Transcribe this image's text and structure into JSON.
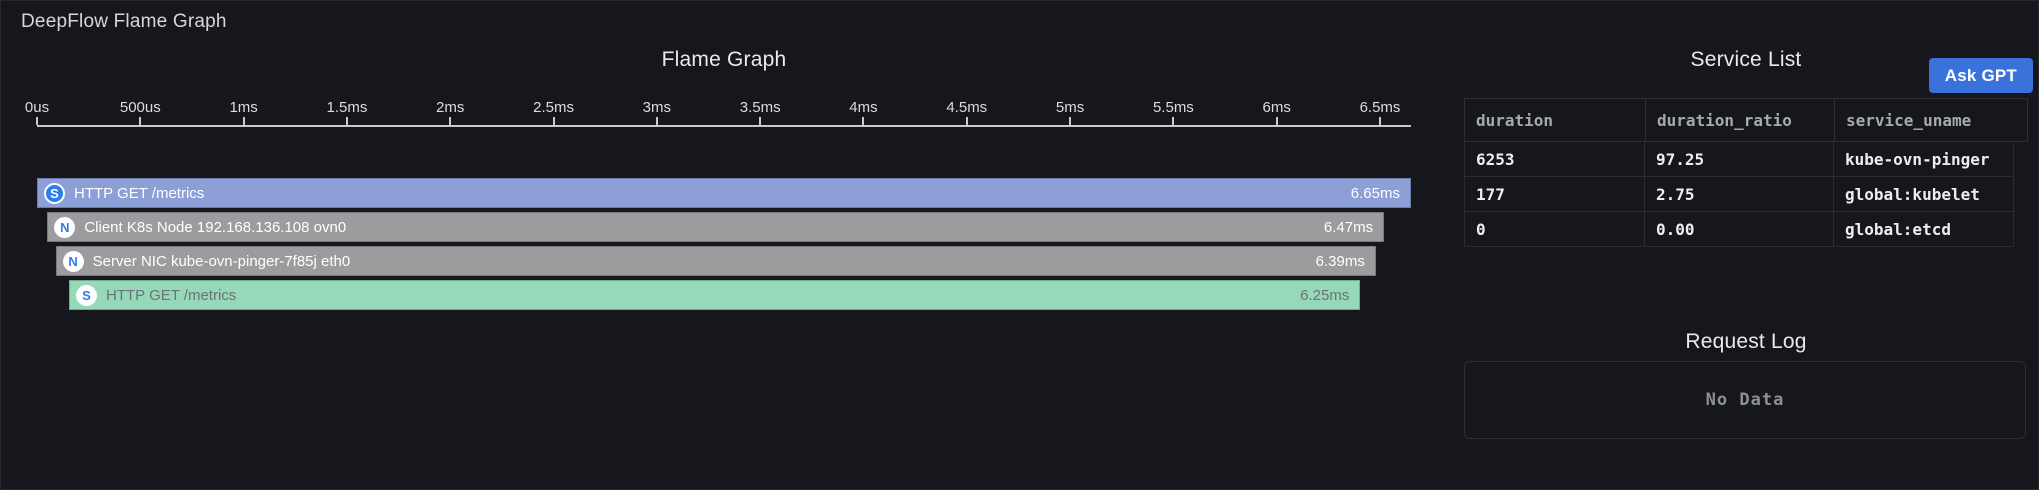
{
  "panel": {
    "title": "DeepFlow Flame Graph"
  },
  "flame_graph": {
    "title": "Flame Graph",
    "axis": {
      "ticks": [
        "0us",
        "500us",
        "1ms",
        "1.5ms",
        "2ms",
        "2.5ms",
        "3ms",
        "3.5ms",
        "4ms",
        "4.5ms",
        "5ms",
        "5.5ms",
        "6ms",
        "6.5ms"
      ],
      "tick_interval_ms": 0.5,
      "max_ms": 6.65
    },
    "bars": [
      {
        "icon": "S",
        "icon_style": "solid",
        "label": "HTTP GET /metrics",
        "duration": "6.65ms",
        "start_ms": 0,
        "duration_ms": 6.65,
        "color": "#8c9fd6",
        "text_color": "#ffffff"
      },
      {
        "icon": "N",
        "icon_style": "inverse",
        "label": "Client K8s Node 192.168.136.108 ovn0",
        "duration": "6.47ms",
        "start_ms": 0.05,
        "duration_ms": 6.47,
        "color": "#9c9c9e",
        "text_color": "#ffffff"
      },
      {
        "icon": "N",
        "icon_style": "inverse",
        "label": "Server NIC kube-ovn-pinger-7f85j eth0",
        "duration": "6.39ms",
        "start_ms": 0.09,
        "duration_ms": 6.39,
        "color": "#9c9c9e",
        "text_color": "#ffffff"
      },
      {
        "icon": "S",
        "icon_style": "inverse",
        "label": "HTTP GET /metrics",
        "duration": "6.25ms",
        "start_ms": 0.155,
        "duration_ms": 6.25,
        "color": "#95d9b8",
        "text_color": "#6d7278"
      }
    ]
  },
  "service_list": {
    "title": "Service List",
    "ask_gpt_label": "Ask GPT",
    "columns": [
      "duration",
      "duration_ratio",
      "service_uname"
    ],
    "rows": [
      [
        "6253",
        "97.25",
        "kube-ovn-pinger"
      ],
      [
        "177",
        "2.75",
        "global:kubelet"
      ],
      [
        "0",
        "0.00",
        "global:etcd"
      ]
    ]
  },
  "request_log": {
    "title": "Request Log",
    "empty_text": "No Data"
  },
  "colors": {
    "accent_blue": "#3a72dc",
    "icon_blue": "#2e7de9",
    "bar_blue": "#8c9fd6",
    "bar_gray": "#9c9c9e",
    "bar_green": "#95d9b8",
    "axis_line": "#c9cacd"
  },
  "chart_data": {
    "type": "flame",
    "title": "Flame Graph",
    "x_unit": "ms",
    "x_ticks_ms": [
      0,
      0.5,
      1,
      1.5,
      2,
      2.5,
      3,
      3.5,
      4,
      4.5,
      5,
      5.5,
      6,
      6.5
    ],
    "frames": [
      {
        "depth": 0,
        "kind": "S",
        "name": "HTTP GET /metrics",
        "duration_ms": 6.65
      },
      {
        "depth": 1,
        "kind": "N",
        "name": "Client K8s Node 192.168.136.108 ovn0",
        "duration_ms": 6.47
      },
      {
        "depth": 2,
        "kind": "N",
        "name": "Server NIC kube-ovn-pinger-7f85j eth0",
        "duration_ms": 6.39
      },
      {
        "depth": 3,
        "kind": "S",
        "name": "HTTP GET /metrics",
        "duration_ms": 6.25
      }
    ]
  }
}
